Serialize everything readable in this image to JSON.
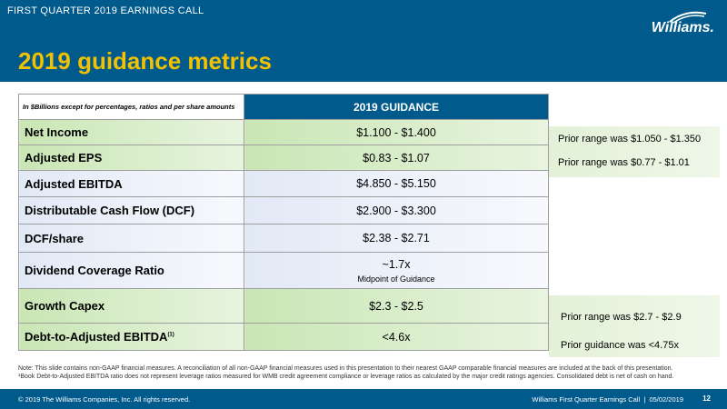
{
  "header": {
    "eyebrow": "FIRST QUARTER 2019 EARNINGS CALL",
    "title": "2019 guidance metrics",
    "logo_text": "Williams.",
    "brand_color": "#005a8c",
    "title_color": "#f2c100"
  },
  "table": {
    "units_note": "In $Billions except for percentages, ratios and per share amounts",
    "column_header": "2019 GUIDANCE",
    "rows": [
      {
        "label": "Net Income",
        "value": "$1.100 - $1.400",
        "sub": ""
      },
      {
        "label": "Adjusted EPS",
        "value": "$0.83 - $1.07",
        "sub": ""
      },
      {
        "label": "Adjusted EBITDA",
        "value": "$4.850 - $5.150",
        "sub": ""
      },
      {
        "label": "Distributable Cash Flow (DCF)",
        "value": "$2.900 - $3.300",
        "sub": ""
      },
      {
        "label": "DCF/share",
        "value": "$2.38 - $2.71",
        "sub": ""
      },
      {
        "label": "Dividend Coverage Ratio",
        "value": "~1.7x",
        "sub": "Midpoint of Guidance"
      },
      {
        "label": "Growth Capex",
        "value": "$2.3 - $2.5",
        "sub": ""
      },
      {
        "label": "Debt-to-Adjusted EBITDA",
        "label_sup": "(1)",
        "value": "<4.6x",
        "sub": ""
      }
    ]
  },
  "notes": [
    "Prior range was $1.050 - $1.350",
    "Prior range was $0.77 - $1.01",
    "Prior range was $2.7 - $2.9",
    "Prior guidance was <4.75x"
  ],
  "footnote": {
    "line1": "Note: This slide contains non-GAAP financial measures. A reconciliation of all non-GAAP financial measures used in this presentation to their nearest GAAP comparable financial measures are included at the back of this presentation.",
    "line2": "¹Book Debt-to-Adjusted EBITDA ratio does not represent leverage ratios measured for WMB credit agreement compliance or leverage ratios as calculated by the major credit ratings agencies. Consolidated debt is net of cash on hand."
  },
  "footer": {
    "copyright": "© 2019 The Williams Companies, Inc. All rights reserved.",
    "event": "Williams First Quarter Earnings Call",
    "separator": "|",
    "date": "05/02/2019",
    "page": "12"
  }
}
